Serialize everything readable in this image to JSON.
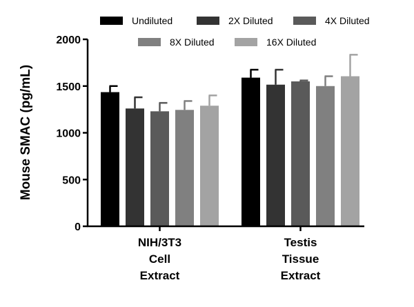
{
  "chart_data": {
    "type": "bar",
    "title": "",
    "xlabel": "",
    "ylabel": "Mouse SMAC (pg/mL)",
    "ylim": [
      0,
      2000
    ],
    "yticks": [
      0,
      500,
      1000,
      1500,
      2000
    ],
    "grid": false,
    "legend_position": "top",
    "categories": [
      [
        "NIH/3T3",
        "Cell",
        "Extract"
      ],
      [
        "Testis",
        "Tissue",
        "Extract"
      ]
    ],
    "series": [
      {
        "name": "Undiluted",
        "color": "#000000",
        "values": [
          1435,
          1590
        ],
        "errors": [
          65,
          85
        ]
      },
      {
        "name": "2X Diluted",
        "color": "#333333",
        "values": [
          1260,
          1515
        ],
        "errors": [
          120,
          160
        ]
      },
      {
        "name": "4X Diluted",
        "color": "#5a5a5a",
        "values": [
          1230,
          1550
        ],
        "errors": [
          90,
          10
        ]
      },
      {
        "name": "8X Diluted",
        "color": "#808080",
        "values": [
          1245,
          1500
        ],
        "errors": [
          95,
          105
        ]
      },
      {
        "name": "16X Diluted",
        "color": "#a3a3a3",
        "values": [
          1290,
          1605
        ],
        "errors": [
          110,
          230
        ]
      }
    ]
  }
}
